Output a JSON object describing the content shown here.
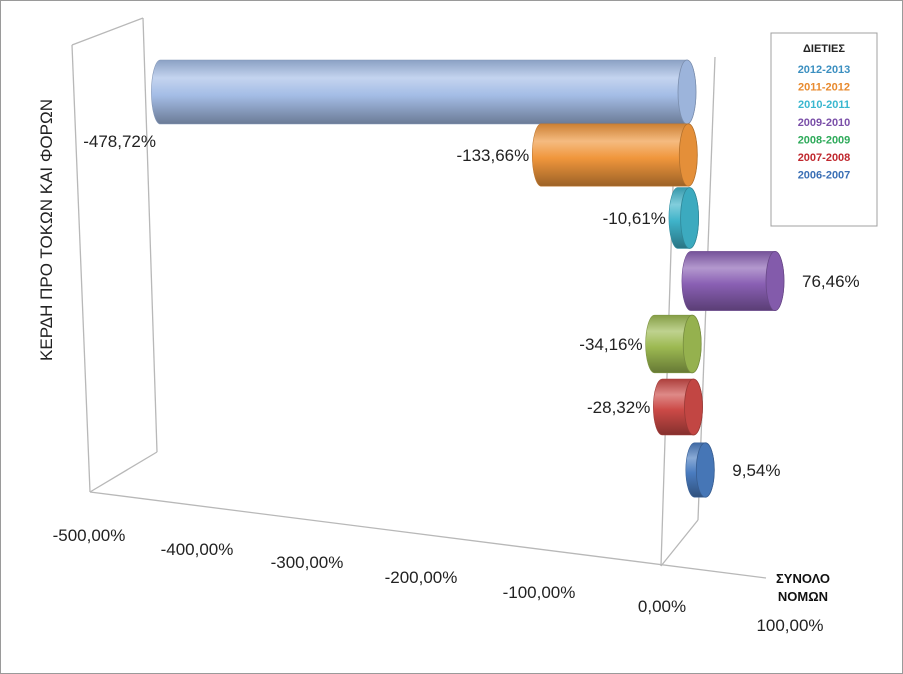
{
  "chart_data": {
    "type": "bar",
    "orientation": "horizontal",
    "style": "3d-cylinder",
    "ylabel": "ΚΕΡΔΗ ΠΡΟ ΤΟΚΩΝ ΚΑΙ ΦΟΡΩΝ",
    "category_label": [
      "ΣΥΝΟΛΟ",
      "ΝΟΜΩΝ"
    ],
    "xlim": [
      -500,
      100
    ],
    "x_ticks": [
      "-500,00%",
      "-400,00%",
      "-300,00%",
      "-200,00%",
      "-100,00%",
      "0,00%",
      "100,00%"
    ],
    "legend": {
      "title": "ΔΙΕΤΙΕΣ",
      "position": "top-right"
    },
    "series": [
      {
        "name": "2012-2013",
        "value": -478.72,
        "label": "-478,72%",
        "color": "#a4bde6",
        "legend_color": "#3b8fc0"
      },
      {
        "name": "2011-2012",
        "value": -133.66,
        "label": "-133,66%",
        "color": "#f0963c",
        "legend_color": "#e88a2e"
      },
      {
        "name": "2010-2011",
        "value": -10.61,
        "label": "-10,61%",
        "color": "#3fb3c9",
        "legend_color": "#3ab7cf"
      },
      {
        "name": "2009-2010",
        "value": 76.46,
        "label": "76,46%",
        "color": "#8a60b4",
        "legend_color": "#7a4fa8"
      },
      {
        "name": "2008-2009",
        "value": -34.16,
        "label": "-34,16%",
        "color": "#9dba52",
        "legend_color": "#2eaa5a"
      },
      {
        "name": "2007-2008",
        "value": -28.32,
        "label": "-28,32%",
        "color": "#cc4a47",
        "legend_color": "#c0282e"
      },
      {
        "name": "2006-2007",
        "value": 9.54,
        "label": "9,54%",
        "color": "#4a7cc0",
        "legend_color": "#3a6fb5"
      }
    ]
  }
}
